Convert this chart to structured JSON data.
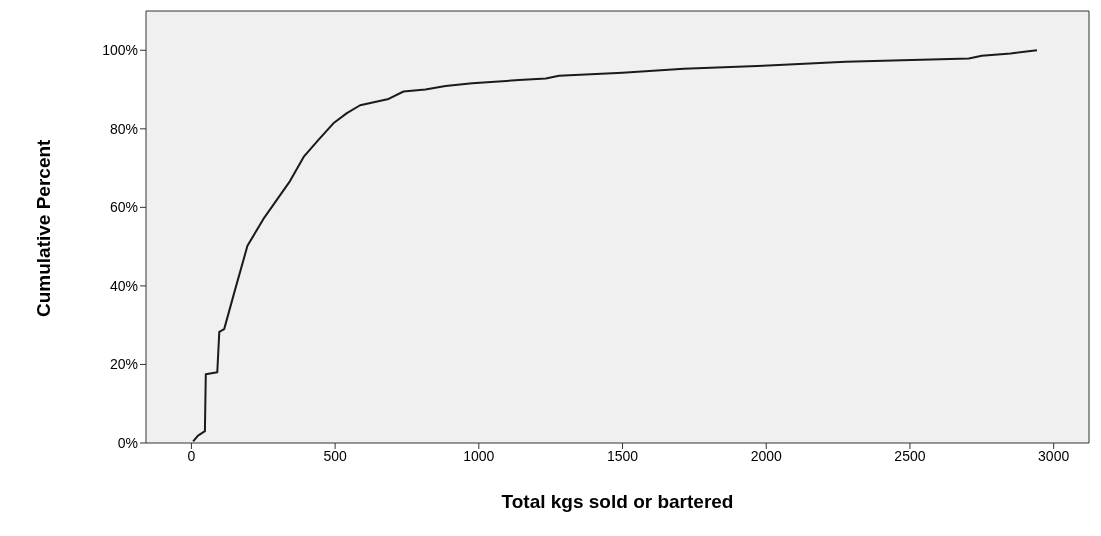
{
  "chart_data": {
    "type": "line",
    "xlabel": "Total kgs sold or bartered",
    "ylabel": "Cumulative Percent",
    "x": [
      6,
      23,
      47,
      50,
      90,
      97,
      114,
      151,
      195,
      250,
      343,
      392,
      442,
      494,
      541,
      587,
      686,
      738,
      814,
      884,
      977,
      1140,
      1233,
      1279,
      1500,
      1713,
      2007,
      2276,
      2705,
      2750,
      2850,
      2942
    ],
    "series": [
      {
        "color": "#1a1a1a",
        "values": [
          0.4,
          1.9,
          3,
          17.5,
          18,
          28.3,
          29,
          38.8,
          50.2,
          57,
          66.7,
          73,
          77.2,
          81.4,
          84,
          86,
          87.6,
          89.5,
          90,
          90.9,
          91.6,
          92.4,
          92.8,
          93.5,
          94.3,
          95.3,
          96.1,
          97.1,
          97.9,
          98.6,
          99.2,
          100
        ]
      }
    ],
    "xlim": [
      -158,
      3123
    ],
    "xticks": [
      0,
      500,
      1000,
      1500,
      2000,
      2500,
      3000
    ],
    "ylim": [
      0,
      110
    ],
    "yticks": [
      {
        "value": 0,
        "label": "0%"
      },
      {
        "value": 20,
        "label": "20%"
      },
      {
        "value": 40,
        "label": "40%"
      },
      {
        "value": 60,
        "label": "60%"
      },
      {
        "value": 80,
        "label": "80%"
      },
      {
        "value": 100,
        "label": "100%"
      }
    ],
    "grid": false,
    "legend": false,
    "marker": "none",
    "line_style": "solid"
  }
}
